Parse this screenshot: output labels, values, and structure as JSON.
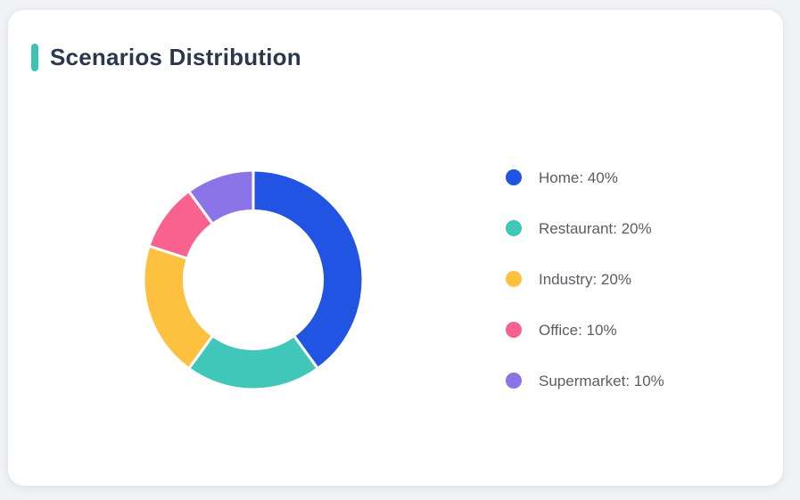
{
  "page": {
    "background_color": "#f0f2f4"
  },
  "card": {
    "title": "Scenarios Distribution",
    "accent_color": "#3bc3b5",
    "title_color": "#29384c",
    "background_color": "#ffffff"
  },
  "chart_data": {
    "type": "pie",
    "subtype": "donut",
    "title": "Scenarios Distribution",
    "categories": [
      "Home",
      "Restaurant",
      "Industry",
      "Office",
      "Supermarket"
    ],
    "values": [
      40,
      20,
      20,
      10,
      10
    ],
    "unit": "%",
    "colors": [
      "#2254e3",
      "#41c6ba",
      "#fdc03f",
      "#f9628e",
      "#8b74e8"
    ],
    "start_angle_deg": 0,
    "direction": "clockwise",
    "inner_radius_ratio": 0.63,
    "segment_border_color": "#ffffff",
    "legend_position": "right",
    "legend_labels": [
      "Home: 40%",
      "Restaurant: 20%",
      "Industry: 20%",
      "Office: 10%",
      "Supermarket: 10%"
    ]
  }
}
